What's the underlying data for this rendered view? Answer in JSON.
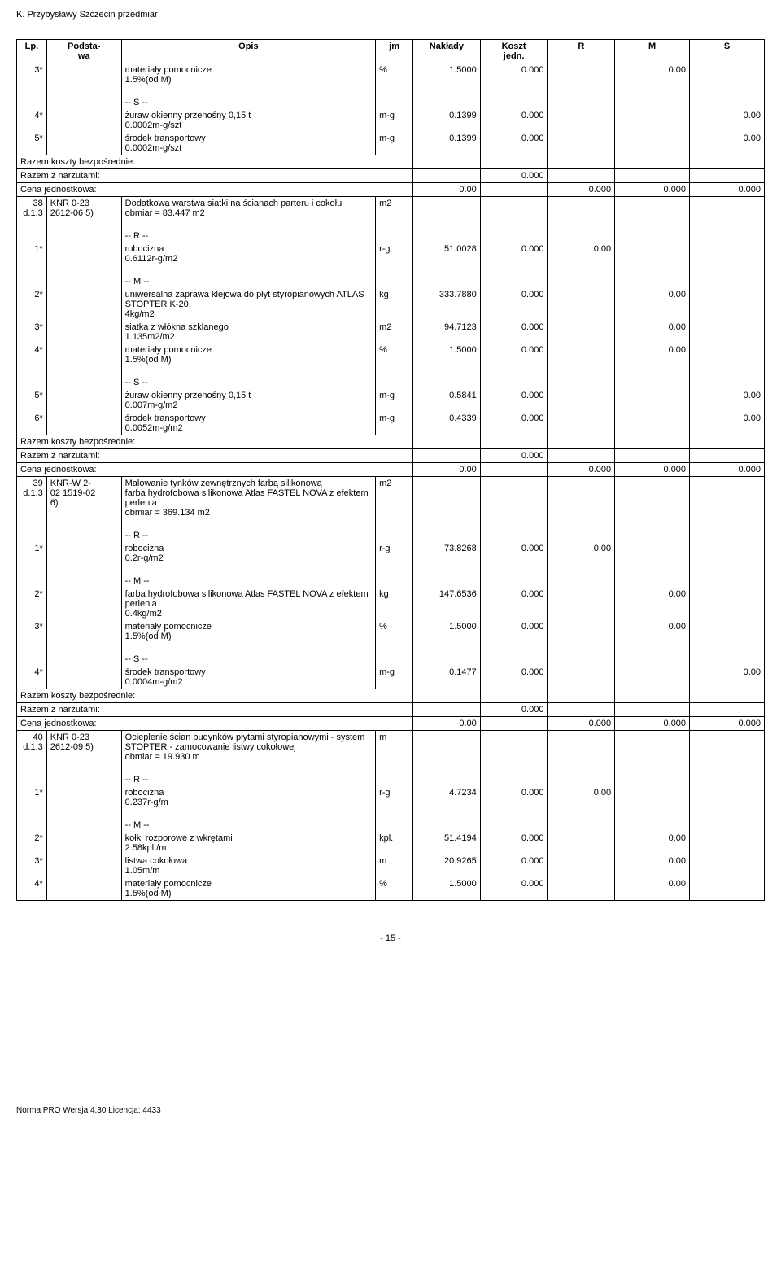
{
  "header_text": "K. Przybysławy Szczecin przedmiar",
  "columns": {
    "lp": "Lp.",
    "base": "Podsta-\nwa",
    "desc": "Opis",
    "jm": "jm",
    "nak": "Nakłady",
    "koszt": "Koszt\njedn.",
    "r": "R",
    "m": "M",
    "s": "S"
  },
  "rows": [
    {
      "lp": "3*",
      "base": "",
      "desc": "materiały pomocnicze\n1.5%(od M)",
      "jm": "%",
      "nak": "1.5000",
      "koszt": "0.000",
      "r": "",
      "m": "0.00",
      "s": ""
    },
    {
      "lp": "",
      "base": "",
      "desc": "",
      "blank": true
    },
    {
      "lp": "",
      "base": "",
      "desc": "-- S --",
      "blank_rest": true
    },
    {
      "lp": "4*",
      "base": "",
      "desc": "żuraw okienny przenośny 0,15 t\n0.0002m-g/szt",
      "jm": "m-g",
      "nak": "0.1399",
      "koszt": "0.000",
      "r": "",
      "m": "",
      "s": "0.00"
    },
    {
      "lp": "5*",
      "base": "",
      "desc": "środek transportowy\n0.0002m-g/szt",
      "jm": "m-g",
      "nak": "0.1399",
      "koszt": "0.000",
      "r": "",
      "m": "",
      "s": "0.00"
    },
    {
      "sum": true,
      "label": "Razem koszty bezpośrednie:",
      "koszt": "",
      "r": "",
      "m": "",
      "s": ""
    },
    {
      "sum": true,
      "label": "Razem z narzutami:",
      "koszt": "0.000",
      "r": "",
      "m": "",
      "s": ""
    },
    {
      "sum": true,
      "label": "Cena jednostkowa:",
      "label_r": "0.00",
      "koszt": "",
      "r": "0.000",
      "m": "0.000",
      "s": "0.000"
    },
    {
      "lp": "38\nd.1.3",
      "base": "KNR 0-23\n2612-06 5)",
      "desc": "Dodatkowa warstwa siatki na ścianach parteru i cokołu\nobmiar  = 83.447 m2",
      "jm": "m2",
      "nak": "",
      "koszt": "",
      "r": "",
      "m": "",
      "s": "",
      "tophead": true
    },
    {
      "lp": "",
      "base": "",
      "desc": "",
      "blank": true
    },
    {
      "lp": "",
      "base": "",
      "desc": "-- R --",
      "blank_rest": true
    },
    {
      "lp": "1*",
      "base": "",
      "desc": "robocizna\n0.6112r-g/m2",
      "jm": "r-g",
      "nak": "51.0028",
      "koszt": "0.000",
      "r": "0.00",
      "m": "",
      "s": ""
    },
    {
      "lp": "",
      "base": "",
      "desc": "",
      "blank": true
    },
    {
      "lp": "",
      "base": "",
      "desc": "-- M --",
      "blank_rest": true
    },
    {
      "lp": "2*",
      "base": "",
      "desc": "uniwersalna zaprawa klejowa do płyt styropianowych ATLAS STOPTER K-20\n4kg/m2",
      "jm": "kg",
      "nak": "333.7880",
      "koszt": "0.000",
      "r": "",
      "m": "0.00",
      "s": ""
    },
    {
      "lp": "3*",
      "base": "",
      "desc": "siatka z włókna szklanego\n1.135m2/m2",
      "jm": "m2",
      "nak": "94.7123",
      "koszt": "0.000",
      "r": "",
      "m": "0.00",
      "s": ""
    },
    {
      "lp": "4*",
      "base": "",
      "desc": "materiały pomocnicze\n1.5%(od M)",
      "jm": "%",
      "nak": "1.5000",
      "koszt": "0.000",
      "r": "",
      "m": "0.00",
      "s": ""
    },
    {
      "lp": "",
      "base": "",
      "desc": "",
      "blank": true
    },
    {
      "lp": "",
      "base": "",
      "desc": "-- S --",
      "blank_rest": true
    },
    {
      "lp": "5*",
      "base": "",
      "desc": "żuraw okienny przenośny 0,15 t\n0.007m-g/m2",
      "jm": "m-g",
      "nak": "0.5841",
      "koszt": "0.000",
      "r": "",
      "m": "",
      "s": "0.00"
    },
    {
      "lp": "6*",
      "base": "",
      "desc": "środek transportowy\n0.0052m-g/m2",
      "jm": "m-g",
      "nak": "0.4339",
      "koszt": "0.000",
      "r": "",
      "m": "",
      "s": "0.00"
    },
    {
      "sum": true,
      "label": "Razem koszty bezpośrednie:",
      "koszt": "",
      "r": "",
      "m": "",
      "s": ""
    },
    {
      "sum": true,
      "label": "Razem z narzutami:",
      "koszt": "0.000",
      "r": "",
      "m": "",
      "s": ""
    },
    {
      "sum": true,
      "label": "Cena jednostkowa:",
      "label_r": "0.00",
      "koszt": "",
      "r": "0.000",
      "m": "0.000",
      "s": "0.000"
    },
    {
      "lp": "39\nd.1.3",
      "base": "KNR-W 2-\n02 1519-02\n6)",
      "desc": "Malowanie tynków zewnętrznych farbą silikonową\nfarba hydrofobowa silikonowa  Atlas FASTEL NOVA z efektem perlenia\nobmiar  = 369.134 m2",
      "jm": "m2",
      "nak": "",
      "koszt": "",
      "r": "",
      "m": "",
      "s": "",
      "tophead": true
    },
    {
      "lp": "",
      "base": "",
      "desc": "",
      "blank": true
    },
    {
      "lp": "",
      "base": "",
      "desc": "-- R --",
      "blank_rest": true
    },
    {
      "lp": "1*",
      "base": "",
      "desc": "robocizna\n0.2r-g/m2",
      "jm": "r-g",
      "nak": "73.8268",
      "koszt": "0.000",
      "r": "0.00",
      "m": "",
      "s": ""
    },
    {
      "lp": "",
      "base": "",
      "desc": "",
      "blank": true
    },
    {
      "lp": "",
      "base": "",
      "desc": "-- M --",
      "blank_rest": true
    },
    {
      "lp": "2*",
      "base": "",
      "desc": "farba hydrofobowa silikonowa  Atlas FASTEL NOVA z efektem perlenia\n0.4kg/m2",
      "jm": "kg",
      "nak": "147.6536",
      "koszt": "0.000",
      "r": "",
      "m": "0.00",
      "s": ""
    },
    {
      "lp": "3*",
      "base": "",
      "desc": "materiały pomocnicze\n1.5%(od M)",
      "jm": "%",
      "nak": "1.5000",
      "koszt": "0.000",
      "r": "",
      "m": "0.00",
      "s": ""
    },
    {
      "lp": "",
      "base": "",
      "desc": "",
      "blank": true
    },
    {
      "lp": "",
      "base": "",
      "desc": "-- S --",
      "blank_rest": true
    },
    {
      "lp": "4*",
      "base": "",
      "desc": "środek transportowy\n0.0004m-g/m2",
      "jm": "m-g",
      "nak": "0.1477",
      "koszt": "0.000",
      "r": "",
      "m": "",
      "s": "0.00"
    },
    {
      "sum": true,
      "label": "Razem koszty bezpośrednie:",
      "koszt": "",
      "r": "",
      "m": "",
      "s": ""
    },
    {
      "sum": true,
      "label": "Razem z narzutami:",
      "koszt": "0.000",
      "r": "",
      "m": "",
      "s": ""
    },
    {
      "sum": true,
      "label": "Cena jednostkowa:",
      "label_r": "0.00",
      "koszt": "",
      "r": "0.000",
      "m": "0.000",
      "s": "0.000"
    },
    {
      "lp": "40\nd.1.3",
      "base": "KNR 0-23\n2612-09 5)",
      "desc": "Ocieplenie ścian budynków płytami styropianowymi - system STOPTER - zamocowanie listwy cokołowej\nobmiar  = 19.930 m",
      "jm": "m",
      "nak": "",
      "koszt": "",
      "r": "",
      "m": "",
      "s": "",
      "tophead": true
    },
    {
      "lp": "",
      "base": "",
      "desc": "",
      "blank": true
    },
    {
      "lp": "",
      "base": "",
      "desc": "-- R --",
      "blank_rest": true
    },
    {
      "lp": "1*",
      "base": "",
      "desc": "robocizna\n0.237r-g/m",
      "jm": "r-g",
      "nak": "4.7234",
      "koszt": "0.000",
      "r": "0.00",
      "m": "",
      "s": ""
    },
    {
      "lp": "",
      "base": "",
      "desc": "",
      "blank": true
    },
    {
      "lp": "",
      "base": "",
      "desc": "-- M --",
      "blank_rest": true
    },
    {
      "lp": "2*",
      "base": "",
      "desc": "kołki rozporowe z wkrętami\n2.58kpl./m",
      "jm": "kpl.",
      "nak": "51.4194",
      "koszt": "0.000",
      "r": "",
      "m": "0.00",
      "s": ""
    },
    {
      "lp": "3*",
      "base": "",
      "desc": "listwa cokołowa\n1.05m/m",
      "jm": "m",
      "nak": "20.9265",
      "koszt": "0.000",
      "r": "",
      "m": "0.00",
      "s": ""
    },
    {
      "lp": "4*",
      "base": "",
      "desc": "materiały pomocnicze\n1.5%(od M)",
      "jm": "%",
      "nak": "1.5000",
      "koszt": "0.000",
      "r": "",
      "m": "0.00",
      "s": ""
    }
  ],
  "page_num": "- 15 -",
  "footer": "Norma PRO Wersja 4.30 Licencja: 4433"
}
